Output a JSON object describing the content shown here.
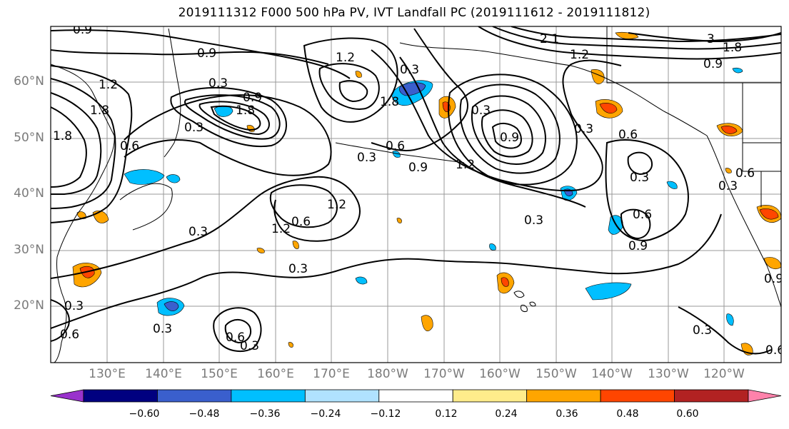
{
  "title": "2019111312 F000 500 hPa PV, IVT Landfall PC (2019111612 - 2019111812)",
  "map": {
    "lat_labels": [
      "60°N",
      "50°N",
      "40°N",
      "30°N",
      "20°N"
    ],
    "lon_labels": [
      "130°E",
      "140°E",
      "150°E",
      "160°E",
      "170°E",
      "180°W",
      "170°W",
      "160°W",
      "150°W",
      "140°W",
      "130°W",
      "120°W"
    ],
    "contour_labels": [
      "0.9",
      "0.9",
      "2.1",
      "1.2",
      "3",
      "1.8",
      "0.9",
      "1.2",
      "0.3",
      "1.2",
      "1.8",
      "0.3",
      "0.9",
      "1.8",
      "0.3",
      "1.8",
      "0.6",
      "0.3",
      "0.9",
      "1.2",
      "1.8",
      "0.3",
      "0.6",
      "0.3",
      "0.3",
      "0.6",
      "1.2",
      "1.2",
      "0.9",
      "0.3",
      "0.6",
      "0.9",
      "0.3",
      "0.3",
      "0.3",
      "0.6",
      "0.3",
      "0.6",
      "0.3",
      "0.6",
      "0.3",
      "0.6",
      "0.9",
      "0.3",
      "0.6"
    ],
    "colors": {
      "coast": "#000000",
      "grid": "#999999",
      "contour": "#000000"
    }
  },
  "colorbar": {
    "colors": [
      "#9932CC",
      "#000080",
      "#3A5FCD",
      "#00BFFF",
      "#B0E2FF",
      "#FFFFFF",
      "#FFEC8B",
      "#FFA500",
      "#FF4500",
      "#B22222",
      "#FF82AB"
    ],
    "ticks": [
      "−0.60",
      "−0.48",
      "−0.36",
      "−0.24",
      "−0.12",
      "0.12",
      "0.24",
      "0.36",
      "0.48",
      "0.60"
    ]
  }
}
